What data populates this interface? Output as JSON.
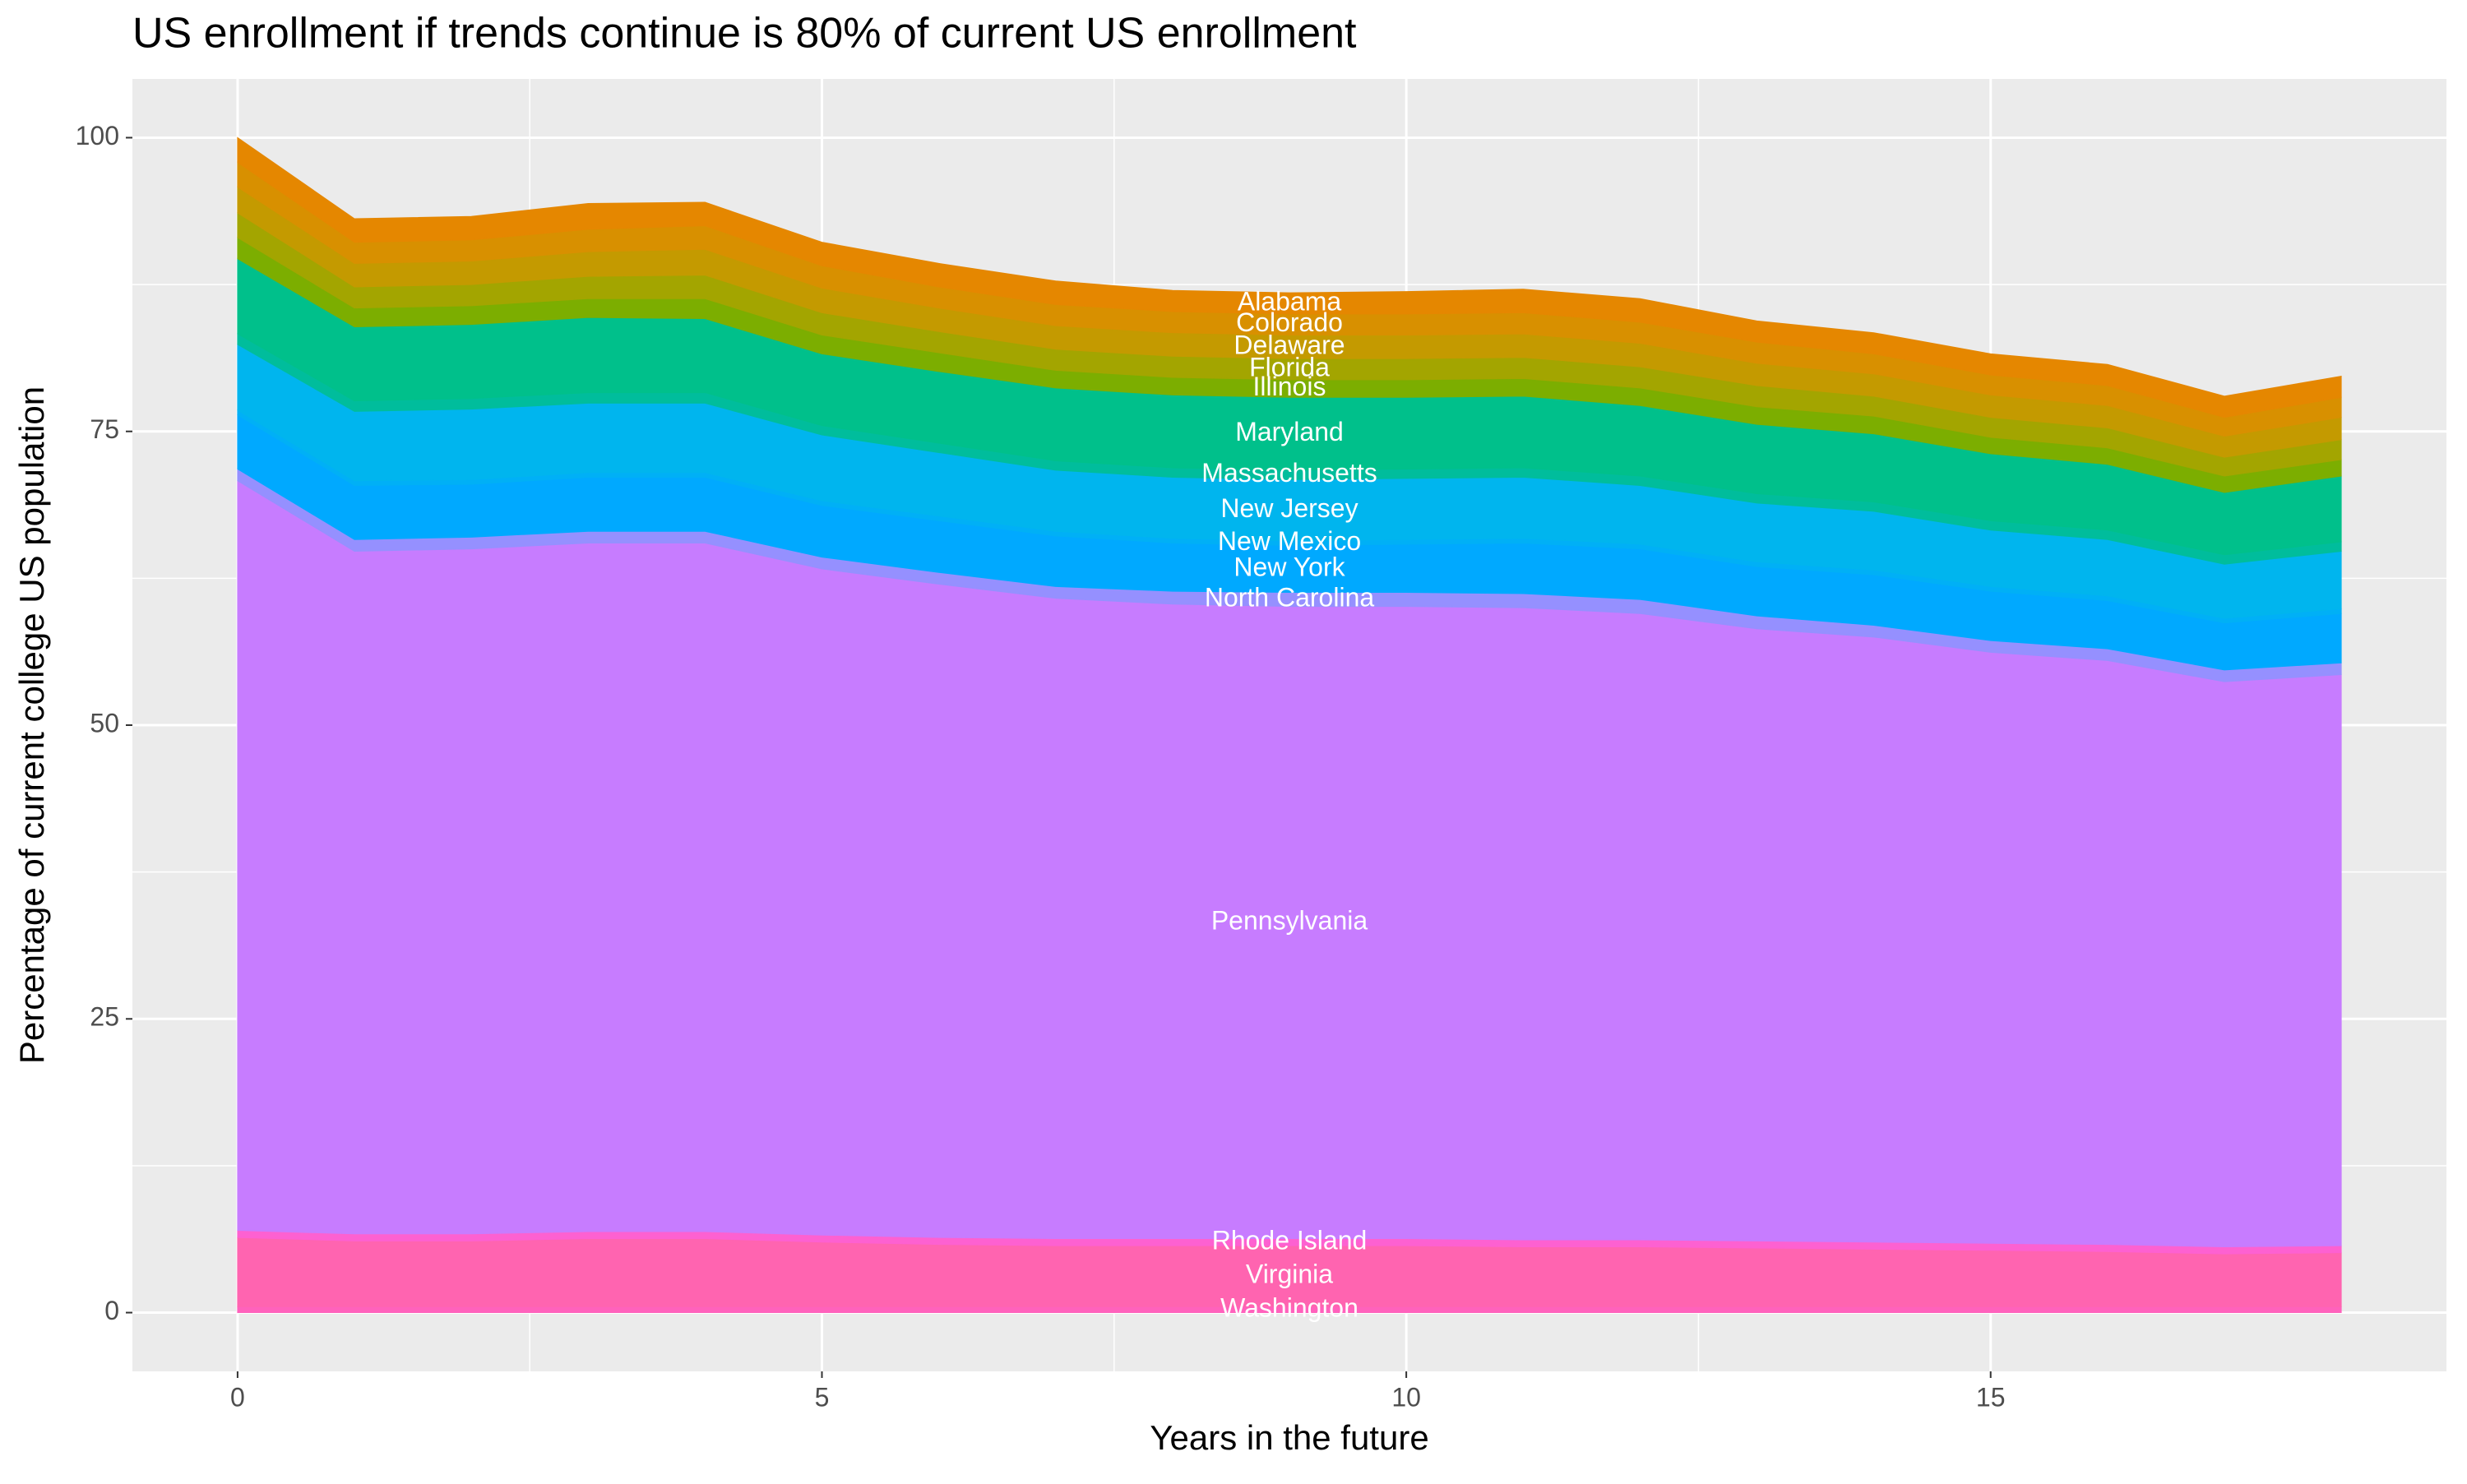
{
  "chart_data": {
    "type": "stacked_area",
    "title": "US enrollment if trends continue is 80% of current US enrollment",
    "x_label": "Years in the future",
    "y_label": "Percentage of current college US population",
    "x": [
      0,
      1,
      2,
      3,
      4,
      5,
      6,
      7,
      8,
      9,
      10,
      11,
      12,
      13,
      14,
      15,
      16,
      17,
      18
    ],
    "xlim": [
      -0.9,
      18.9
    ],
    "xticks": [
      0,
      5,
      10,
      15
    ],
    "ylim": [
      -5,
      105
    ],
    "yticks": [
      0,
      25,
      50,
      75,
      100
    ],
    "grid": true,
    "series": [
      {
        "name": "Washington",
        "color": "#FF62BC",
        "values": [
          0.5,
          0.5,
          0.5,
          0.5,
          0.5,
          0.5,
          0.5,
          0.5,
          0.5,
          0.5,
          0.5,
          0.5,
          0.5,
          0.5,
          0.5,
          0.5,
          0.5,
          0.5,
          0.5
        ]
      },
      {
        "name": "Virginia",
        "color": "#FF64B0",
        "values": [
          5.9,
          5.6,
          5.6,
          5.8,
          5.8,
          5.5,
          5.3,
          5.2,
          5.2,
          5.2,
          5.2,
          5.1,
          5.1,
          5.0,
          4.9,
          4.8,
          4.7,
          4.5,
          4.6
        ]
      },
      {
        "name": "Rhode Island",
        "color": "#FD61D1",
        "values": [
          0.6,
          0.6,
          0.6,
          0.6,
          0.6,
          0.6,
          0.6,
          0.6,
          0.6,
          0.6,
          0.6,
          0.6,
          0.6,
          0.6,
          0.6,
          0.6,
          0.6,
          0.6,
          0.6
        ]
      },
      {
        "name": "Pennsylvania",
        "color": "#C77CFF",
        "values": [
          63.8,
          58.1,
          58.3,
          58.6,
          58.6,
          56.7,
          55.6,
          54.5,
          54.0,
          53.8,
          53.8,
          53.8,
          53.3,
          52.1,
          51.5,
          50.3,
          49.7,
          48.1,
          48.6
        ]
      },
      {
        "name": "North Carolina",
        "color": "#9590FF",
        "values": [
          1.0,
          1.0,
          1.0,
          1.0,
          1.0,
          1.0,
          1.0,
          1.0,
          1.1,
          1.2,
          1.2,
          1.2,
          1.2,
          1.1,
          1.0,
          1.0,
          1.0,
          1.0,
          1.0
        ]
      },
      {
        "name": "New York",
        "color": "#00A9FF",
        "values": [
          4.6,
          4.6,
          4.5,
          4.6,
          4.6,
          4.4,
          4.4,
          4.3,
          4.1,
          4.0,
          4.1,
          4.3,
          4.3,
          4.2,
          4.3,
          4.2,
          4.1,
          4.0,
          4.2
        ]
      },
      {
        "name": "New Mexico",
        "color": "#00B0F6",
        "values": [
          0.4,
          0.4,
          0.4,
          0.4,
          0.4,
          0.4,
          0.4,
          0.4,
          0.4,
          0.4,
          0.4,
          0.4,
          0.4,
          0.4,
          0.4,
          0.4,
          0.4,
          0.4,
          0.4
        ]
      },
      {
        "name": "New Jersey",
        "color": "#00B5EE",
        "values": [
          5.6,
          5.9,
          6.0,
          5.9,
          5.9,
          5.6,
          5.4,
          5.2,
          5.2,
          5.2,
          5.2,
          5.2,
          5.0,
          5.0,
          5.0,
          4.8,
          4.8,
          4.6,
          4.9
        ]
      },
      {
        "name": "Massachusetts",
        "color": "#00BD9C",
        "values": [
          0.9,
          0.9,
          0.9,
          0.9,
          0.9,
          0.8,
          0.8,
          0.8,
          0.8,
          0.8,
          0.8,
          0.8,
          0.8,
          0.8,
          0.8,
          0.8,
          0.8,
          0.8,
          0.8
        ]
      },
      {
        "name": "Maryland",
        "color": "#00C08B",
        "values": [
          6.4,
          6.3,
          6.3,
          6.4,
          6.3,
          6.1,
          6.1,
          6.2,
          6.2,
          6.2,
          6.1,
          6.1,
          6.0,
          5.9,
          5.8,
          5.7,
          5.6,
          5.3,
          5.6
        ]
      },
      {
        "name": "Illinois",
        "color": "#7CAE00",
        "values": [
          1.8,
          1.6,
          1.6,
          1.6,
          1.7,
          1.6,
          1.6,
          1.5,
          1.5,
          1.5,
          1.5,
          1.5,
          1.5,
          1.5,
          1.5,
          1.4,
          1.4,
          1.4,
          1.4
        ]
      },
      {
        "name": "Florida",
        "color": "#A3A500",
        "values": [
          2.1,
          1.8,
          1.8,
          1.9,
          2.0,
          1.9,
          1.8,
          1.8,
          1.8,
          1.8,
          1.8,
          1.8,
          1.8,
          1.8,
          1.7,
          1.7,
          1.7,
          1.6,
          1.7
        ]
      },
      {
        "name": "Delaware",
        "color": "#C49A00",
        "values": [
          2.2,
          2.0,
          2.0,
          2.1,
          2.2,
          2.1,
          2.0,
          2.0,
          2.0,
          2.0,
          2.0,
          2.0,
          2.0,
          1.9,
          1.9,
          1.9,
          1.9,
          1.8,
          1.9
        ]
      },
      {
        "name": "Colorado",
        "color": "#D89000",
        "values": [
          2.1,
          1.8,
          1.8,
          1.9,
          2.0,
          1.9,
          1.8,
          1.8,
          1.8,
          1.8,
          1.8,
          1.8,
          1.8,
          1.8,
          1.7,
          1.7,
          1.7,
          1.6,
          1.7
        ]
      },
      {
        "name": "Alabama",
        "color": "#E58700",
        "values": [
          2.1,
          2.0,
          2.0,
          2.2,
          2.0,
          2.0,
          2.0,
          2.0,
          1.8,
          1.8,
          1.9,
          2.0,
          2.0,
          1.8,
          1.8,
          1.8,
          1.8,
          1.8,
          1.8
        ]
      }
    ]
  }
}
